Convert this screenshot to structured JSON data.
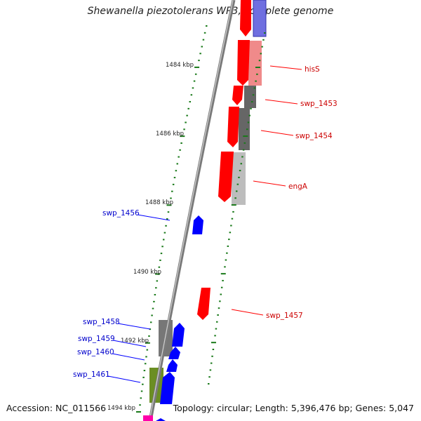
{
  "title": "Shewanella piezotolerans WP3, complete genome",
  "footer": {
    "accession": "Accession: NC_011566",
    "topology": "Topology: circular; Length: 5,396,476 bp; Genes: 5,047"
  },
  "colors": {
    "forward_cds": "#ff0000",
    "reverse_cds": "#0000ff",
    "forward_label": "#cc0000",
    "reverse_label": "#0000cc",
    "tick": "#1a7a1a",
    "backbone": "#888888"
  },
  "scale_labels": [
    "1484 kbp",
    "1486 kbp",
    "1488 kbp",
    "1490 kbp",
    "1492 kbp",
    "1494 kbp"
  ],
  "gene_labels": {
    "forward": [
      "hisS",
      "swp_1453",
      "swp_1454",
      "engA",
      "swp_1457"
    ],
    "reverse": [
      "swp_1456",
      "swp_1458",
      "swp_1459",
      "swp_1460",
      "swp_1461"
    ]
  }
}
